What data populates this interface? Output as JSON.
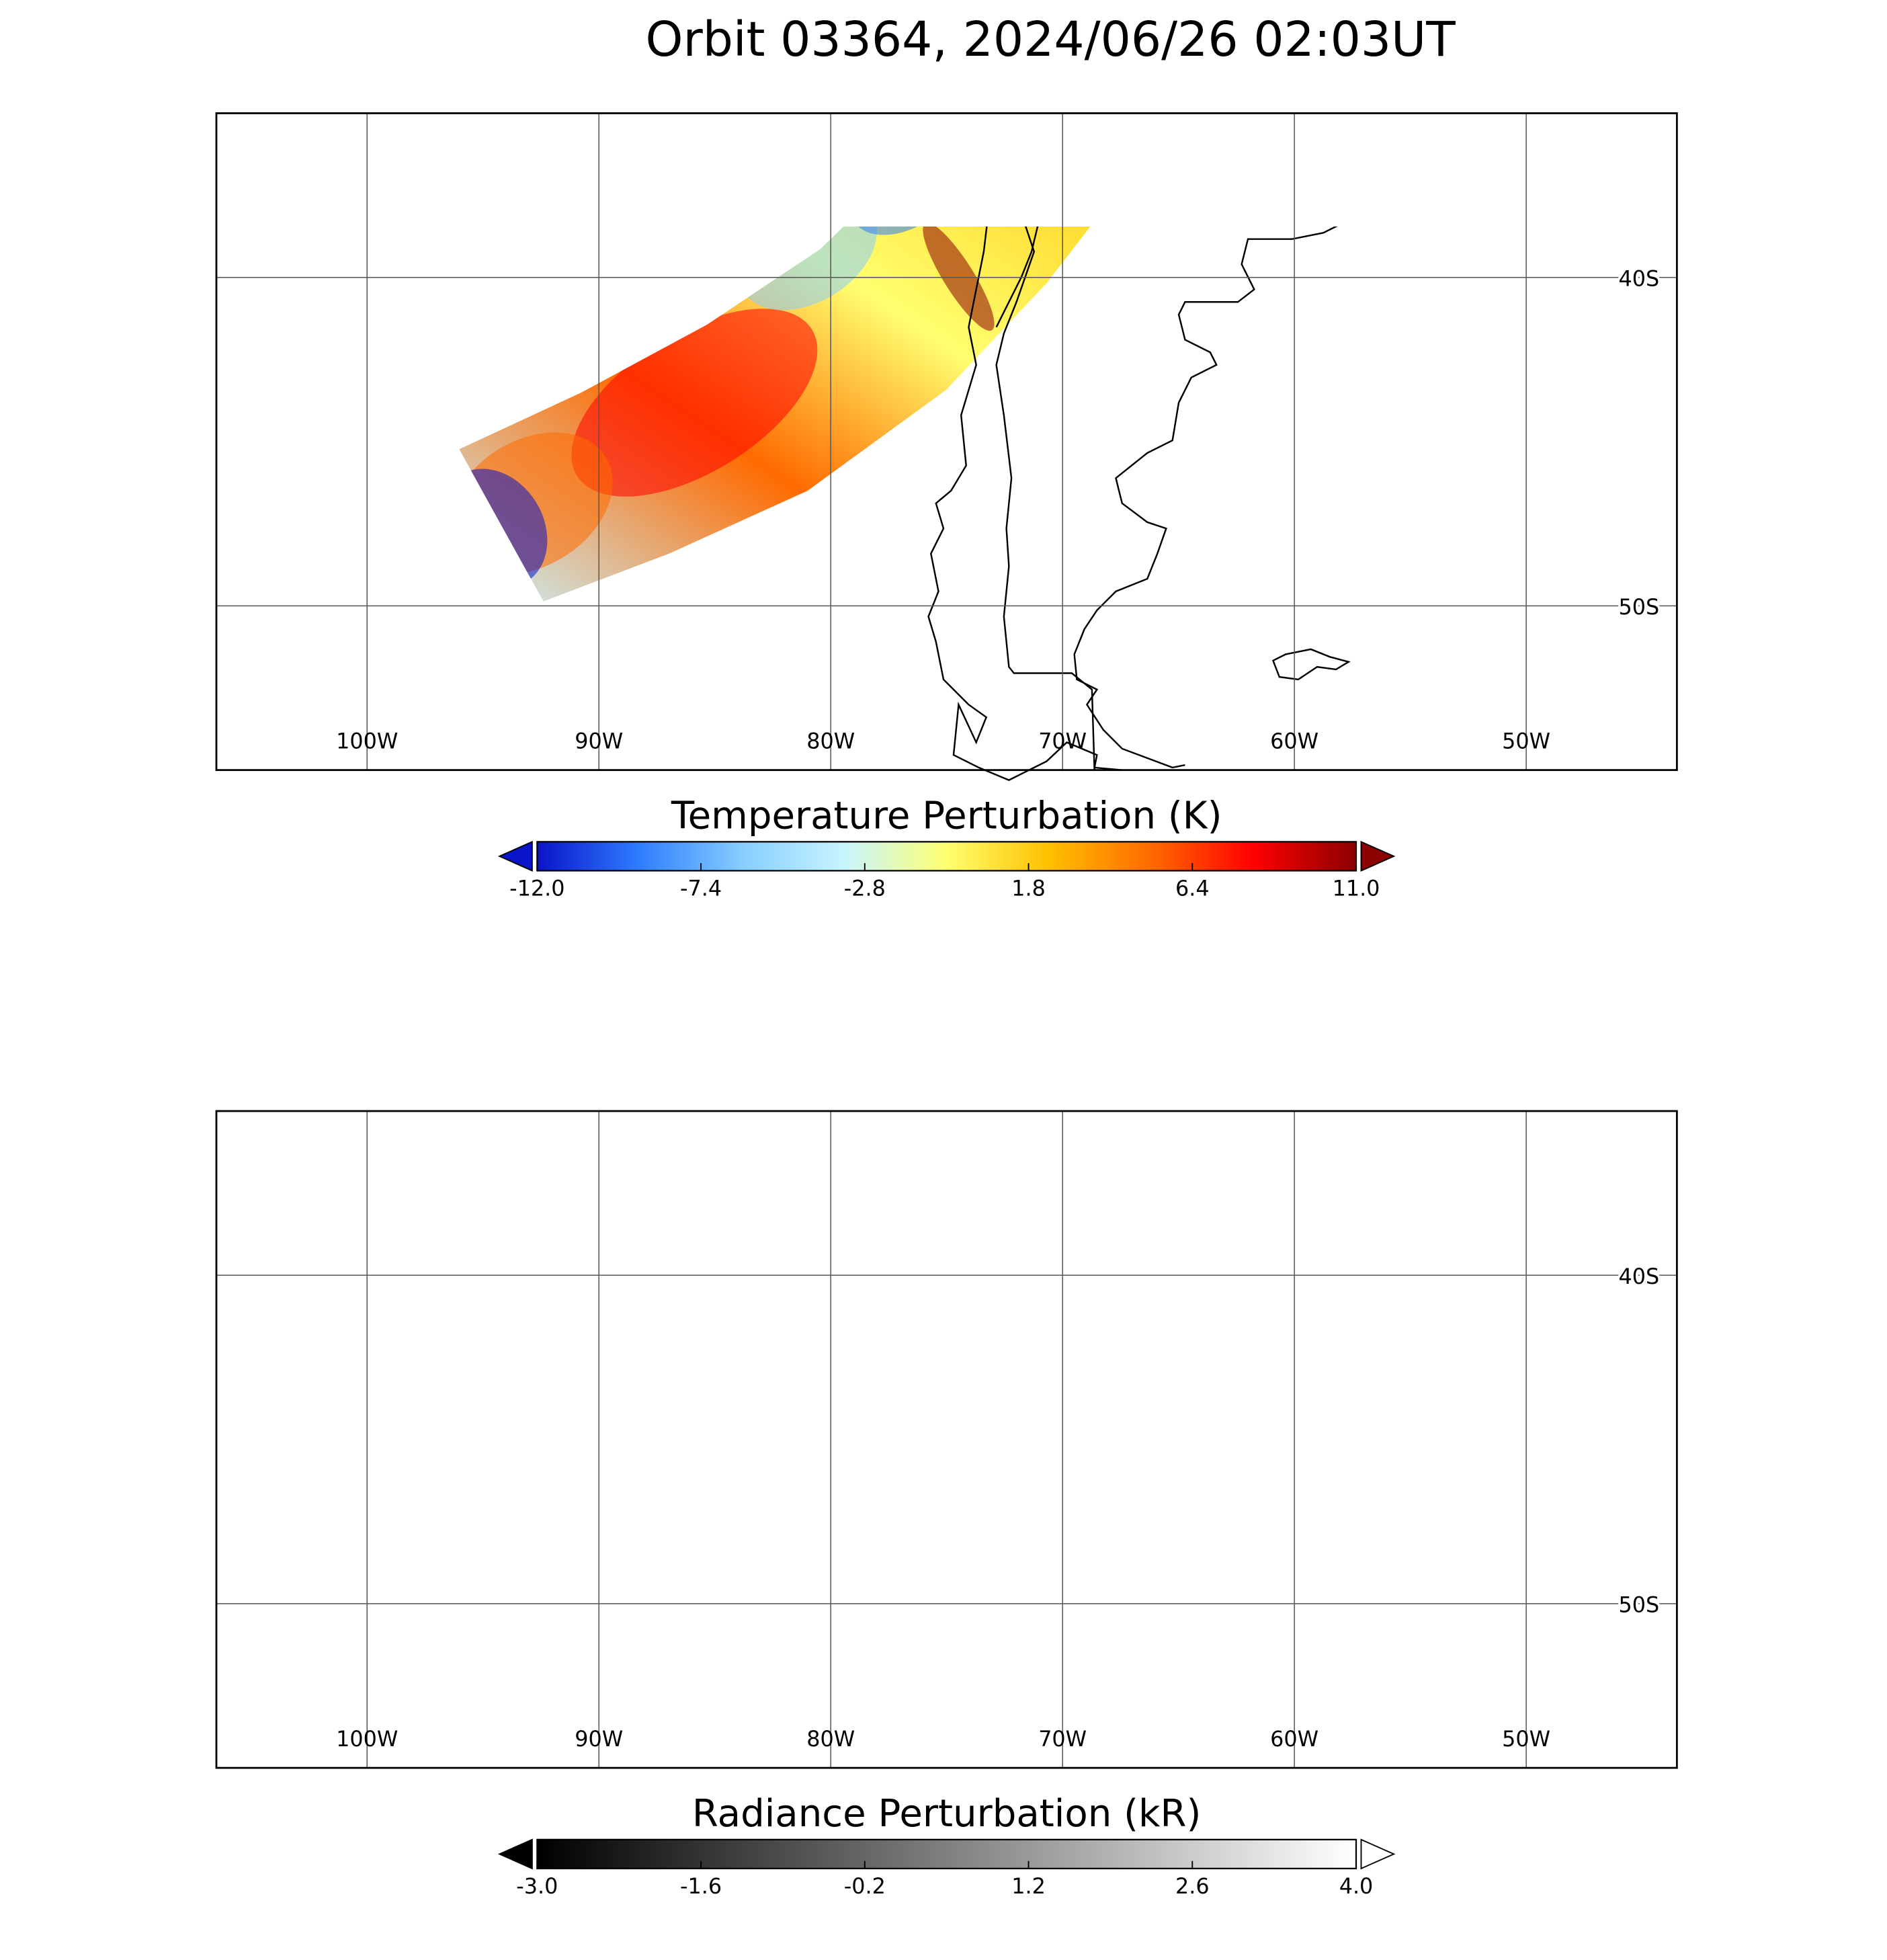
{
  "title": "Orbit 03364, 2024/06/26 02:03UT",
  "chart_data": [
    {
      "type": "map",
      "xlim": [
        -106.5,
        -43.5
      ],
      "ylim": [
        -55,
        -35
      ],
      "grid": true,
      "xticks": [
        {
          "value": -100,
          "label": "100W"
        },
        {
          "value": -90,
          "label": "90W"
        },
        {
          "value": -80,
          "label": "80W"
        },
        {
          "value": -70,
          "label": "70W"
        },
        {
          "value": -60,
          "label": "60W"
        },
        {
          "value": -50,
          "label": "50W"
        }
      ],
      "yticks": [
        {
          "value": -40,
          "label": "40S"
        },
        {
          "value": -50,
          "label": "50S"
        }
      ],
      "colorbar": {
        "title": "Temperature Perturbation (K)",
        "lim": [
          -12,
          11
        ],
        "ticks": [
          {
            "value": -12,
            "label": "-12.0"
          },
          -7.4,
          -2.8,
          1.8,
          6.4,
          {
            "value": 11,
            "label": "11.0"
          }
        ],
        "colors": [
          "#0a14c8",
          "#2f7dff",
          "#86cdff",
          "#c8f4ff",
          "#ffff70",
          "#ffc000",
          "#ff6a00",
          "#ff0000",
          "#8b0000"
        ]
      }
    },
    {
      "type": "map",
      "xlim": [
        -106.5,
        -43.5
      ],
      "ylim": [
        -55,
        -35
      ],
      "grid": true,
      "xticks": [
        {
          "value": -100,
          "label": "100W"
        },
        {
          "value": -90,
          "label": "90W"
        },
        {
          "value": -80,
          "label": "80W"
        },
        {
          "value": -70,
          "label": "70W"
        },
        {
          "value": -60,
          "label": "60W"
        },
        {
          "value": -50,
          "label": "50W"
        }
      ],
      "yticks": [
        {
          "value": -40,
          "label": "40S"
        },
        {
          "value": -50,
          "label": "50S"
        }
      ],
      "colorbar": {
        "title": "Radiance Perturbation (kR)",
        "lim": [
          -3,
          4
        ],
        "ticks": [
          {
            "value": -3,
            "label": "-3.0"
          },
          -1.6,
          -0.2,
          1.2,
          2.6,
          {
            "value": 4,
            "label": "4.0"
          }
        ],
        "colors": [
          "#000000",
          "#ffffff"
        ]
      }
    }
  ]
}
